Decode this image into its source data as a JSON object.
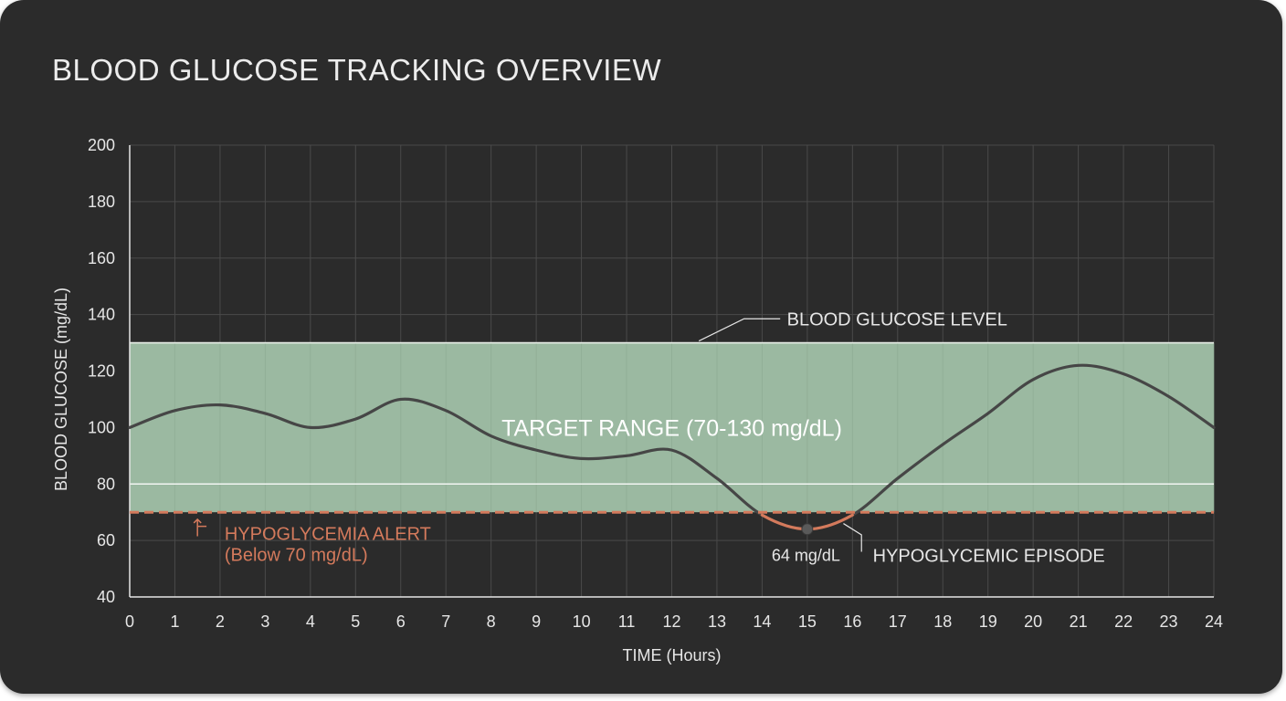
{
  "title": "BLOOD GLUCOSE TRACKING OVERVIEW",
  "colors": {
    "background": "#2b2b2b",
    "grid": "#4a4a4a",
    "target_band": "#9bb9a1",
    "line": "#464646",
    "alert": "#d47a5c",
    "text": "#e6e6e6"
  },
  "chart_data": {
    "type": "line",
    "title": "BLOOD GLUCOSE TRACKING OVERVIEW",
    "xlabel": "TIME (Hours)",
    "ylabel": "BLOOD GLUCOSE (mg/dL)",
    "xlim": [
      0,
      24
    ],
    "ylim": [
      40,
      200
    ],
    "x_ticks": [
      "0",
      "1",
      "2",
      "3",
      "4",
      "5",
      "6",
      "7",
      "8",
      "9",
      "10",
      "11",
      "12",
      "13",
      "14",
      "15",
      "16",
      "17",
      "18",
      "19",
      "20",
      "21",
      "22",
      "23",
      "24"
    ],
    "y_ticks": [
      "40",
      "60",
      "80",
      "100",
      "120",
      "140",
      "160",
      "180",
      "200"
    ],
    "grid": true,
    "series": [
      {
        "x": [
          0,
          1,
          2,
          3,
          4,
          5,
          6,
          7,
          8,
          9,
          10,
          11,
          12,
          13,
          14,
          15,
          16,
          17,
          18,
          19,
          20,
          21,
          22,
          23,
          24
        ],
        "y": [
          100,
          106,
          108,
          105,
          100,
          103,
          110,
          106,
          97,
          92,
          89,
          90,
          92,
          82,
          69,
          64,
          69,
          82,
          94,
          105,
          117,
          122,
          119,
          111,
          100
        ]
      }
    ],
    "target_range": {
      "label": "TARGET RANGE (70-130 mg/dL)",
      "low": 70,
      "high": 130
    },
    "reference_line": {
      "y": 80
    },
    "alert_threshold": {
      "y": 70,
      "label_line1": "HYPOGLYCEMIA ALERT",
      "label_line2": "(Below 70 mg/dL)"
    },
    "annotations": [
      {
        "text": "BLOOD GLUCOSE LEVEL",
        "x": 12.5,
        "y": 130
      },
      {
        "text": "64 mg/dL",
        "x": 15,
        "y": 64
      },
      {
        "text": "HYPOGLYCEMIC EPISODE",
        "x": 15.8,
        "y": 66
      }
    ]
  }
}
